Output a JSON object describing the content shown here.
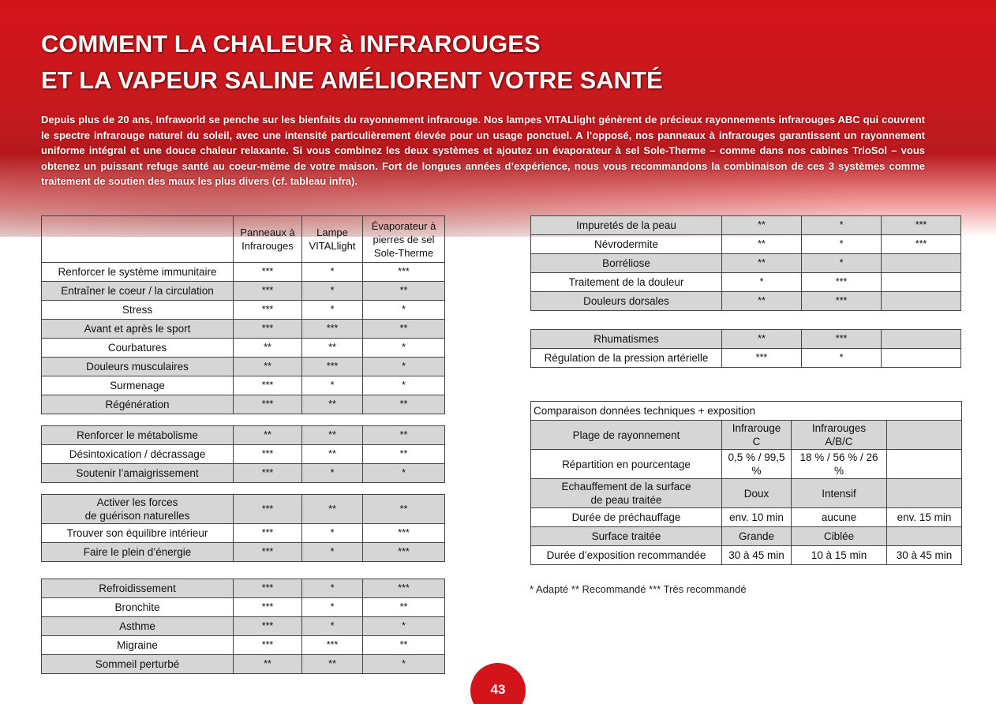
{
  "title": [
    "COMMENT LA CHALEUR à INFRAROUGES",
    "ET LA VAPEUR SALINE AMÉLIORENT VOTRE SANTÉ"
  ],
  "intro": "Depuis plus de 20 ans, Infraworld se penche sur les bienfaits du rayonnement infrarouge. Nos lampes VITALlight génèrent de précieux rayonnements infrarouges ABC qui couvrent le spectre infrarouge naturel du soleil, avec une intensité particulièrement élevée pour un usage ponctuel. A l’opposé, nos panneaux à infrarouges garantissent un rayonnement uniforme intégral et une douce chaleur relaxante. Si vous combinez les deux systèmes et ajoutez un évaporateur à sel Sole-Therme – comme dans nos cabines TrioSol – vous obtenez un puissant refuge santé au coeur-même de votre maison. Fort de longues années d’expérience, nous vous recommandons la combinaison de ces 3 systèmes comme traitement de soutien des maux les plus divers (cf. tableau infra).",
  "left_header": [
    "Panneaux à\nInfrarouges",
    "Lampe\nVITALlight",
    "Évaporateur à\npierres de sel\nSole-Therme"
  ],
  "left_tables": [
    {
      "rows": [
        [
          "Renforcer le système immunitaire",
          "***",
          "*",
          "***"
        ],
        [
          "Entraîner le coeur / la circulation",
          "***",
          "*",
          "**"
        ],
        [
          "Stress",
          "***",
          "*",
          "*"
        ],
        [
          "Avant et après le sport",
          "***",
          "***",
          "**"
        ],
        [
          "Courbatures",
          "**",
          "**",
          "*"
        ],
        [
          "Douleurs musculaires",
          "**",
          "***",
          "*"
        ],
        [
          "Surmenage",
          "***",
          "*",
          "*"
        ],
        [
          "Régénération",
          "***",
          "**",
          "**"
        ]
      ]
    },
    {
      "rows": [
        [
          "Renforcer le métabolisme",
          "**",
          "**",
          "**"
        ],
        [
          "Désintoxication / décrassage",
          "***",
          "**",
          "**"
        ],
        [
          "Soutenir l’amaigrissement",
          "***",
          "*",
          "*"
        ]
      ]
    },
    {
      "rows": [
        [
          "Activer les forces\nde guérison naturelles",
          "***",
          "**",
          "**"
        ],
        [
          "Trouver son équilibre intérieur",
          "***",
          "*",
          "***"
        ],
        [
          "Faire le plein d’énergie",
          "***",
          "*",
          "***"
        ]
      ]
    },
    {
      "rows": [
        [
          "Refroidissement",
          "***",
          "*",
          "***"
        ],
        [
          "Bronchite",
          "***",
          "*",
          "**"
        ],
        [
          "Asthme",
          "***",
          "*",
          "*"
        ],
        [
          "Migraine",
          "***",
          "***",
          "**"
        ],
        [
          "Sommeil perturbé",
          "**",
          "**",
          "*"
        ]
      ]
    }
  ],
  "right_tables": [
    {
      "rows": [
        [
          "Impuretés de la peau",
          "**",
          "*",
          "***"
        ],
        [
          "Névrodermite",
          "**",
          "*",
          "***"
        ],
        [
          "Borréliose",
          "**",
          "*",
          null
        ],
        [
          "Traitement de la douleur",
          "*",
          "***",
          null
        ],
        [
          "Douleurs dorsales",
          "**",
          "***",
          null
        ]
      ]
    },
    {
      "rows": [
        [
          "Rhumatismes",
          "**",
          "***",
          null
        ],
        [
          "Régulation de la pression artérielle",
          "***",
          "*",
          null
        ]
      ]
    }
  ],
  "tech_table": {
    "title": "Comparaison données techniques + exposition",
    "rows": [
      [
        "Plage de rayonnement",
        "Infrarouge\nC",
        "Infrarouges\nA/B/C",
        null
      ],
      [
        "Répartition en pourcentage",
        "0,5 % / 99,5 %",
        "18 % / 56 % / 26 %",
        null
      ],
      [
        "Echauffement de la surface\nde peau traitée",
        "Doux",
        "Intensif",
        null
      ],
      [
        "Durée de préchauffage",
        "env. 10 min",
        "aucune",
        "env. 15 min"
      ],
      [
        "Surface traitée",
        "Grande",
        "Ciblée",
        null
      ],
      [
        "Durée d’exposition recommandée",
        "30 à 45 min",
        "10 à 15 min",
        "30 à 45 min"
      ]
    ]
  },
  "legend": "* Adapté ** Recommandé *** Très recommandé",
  "page_number": "43"
}
